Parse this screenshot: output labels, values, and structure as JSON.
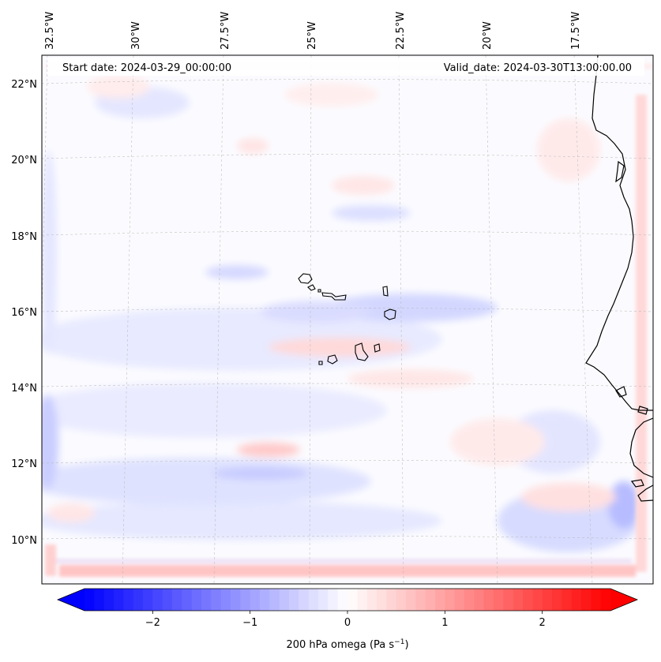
{
  "map": {
    "start_label": "Start date: 2024-03-29_00:00:00",
    "valid_label": "Valid_date: 2024-03-30T13:00:00.00",
    "lon_labels": [
      "32.5°W",
      "30°W",
      "27.5°W",
      "25°W",
      "22.5°W",
      "20°W",
      "17.5°W"
    ],
    "lat_labels": [
      "22°N",
      "20°N",
      "18°N",
      "16°N",
      "14°N",
      "12°N",
      "10°N"
    ]
  },
  "colorbar": {
    "ticks": [
      -2,
      -1,
      0,
      1,
      2
    ],
    "tick_labels": [
      "−2",
      "−1",
      "0",
      "1",
      "2"
    ],
    "label_main": "200 hPa omega (Pa s",
    "label_exp": "−1",
    "label_tail": ")",
    "vmin": -2.7,
    "vmax": 2.7,
    "colormap": "bwr",
    "low_color": "#0000ff",
    "mid_color": "#ffffff",
    "high_color": "#ff0000"
  }
}
